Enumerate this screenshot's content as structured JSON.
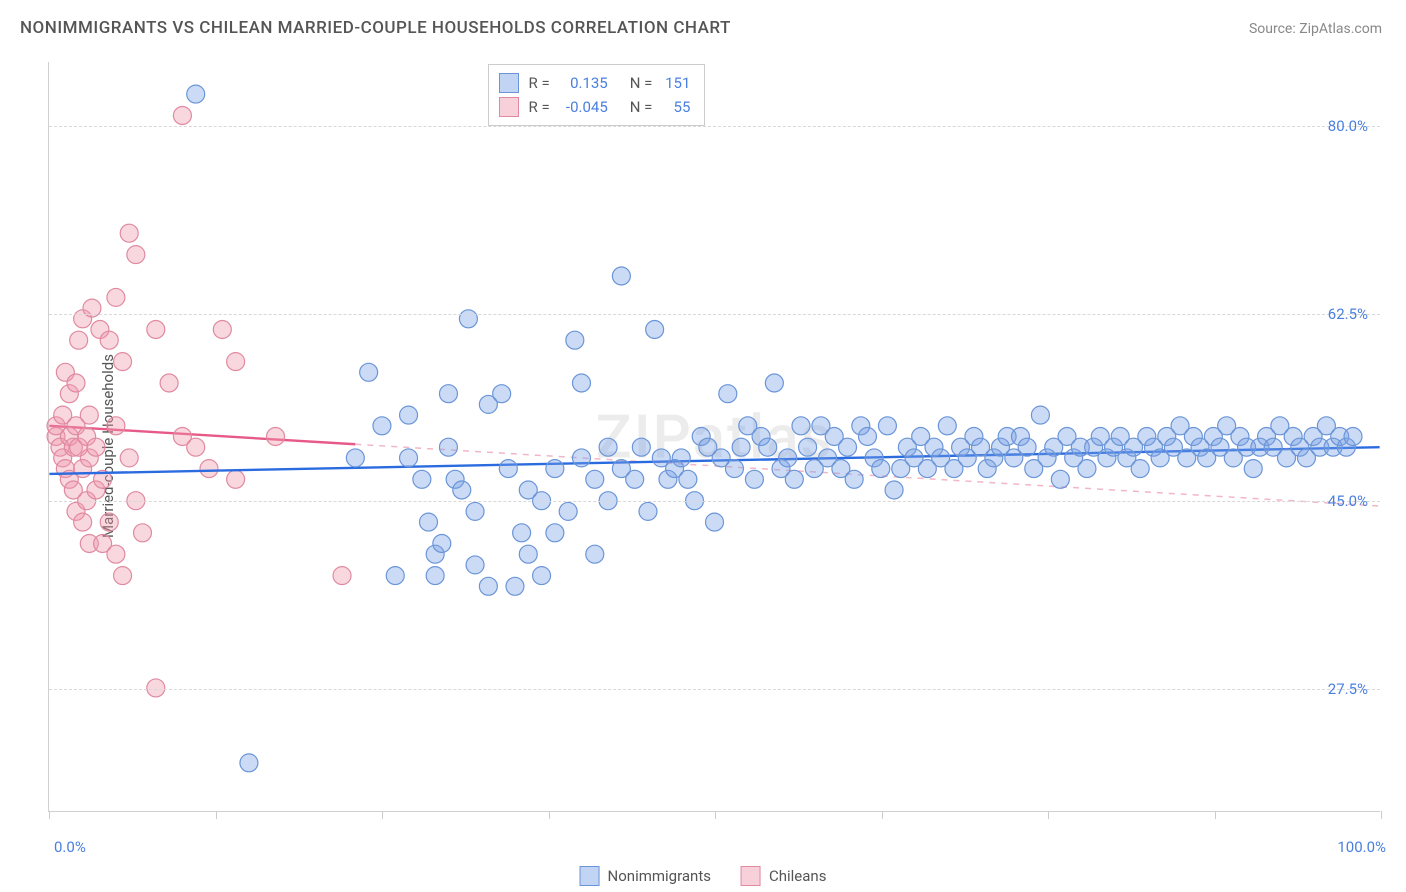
{
  "header": {
    "title": "NONIMMIGRANTS VS CHILEAN MARRIED-COUPLE HOUSEHOLDS CORRELATION CHART",
    "source": "Source: ZipAtlas.com"
  },
  "watermark": "ZIPatlas",
  "chart": {
    "type": "scatter",
    "xlim": [
      0,
      100
    ],
    "ylim": [
      16,
      86
    ],
    "x_edge_labels": {
      "min": "0.0%",
      "max": "100.0%"
    },
    "y_ticks": [
      {
        "v": 27.5,
        "label": "27.5%"
      },
      {
        "v": 45.0,
        "label": "45.0%"
      },
      {
        "v": 62.5,
        "label": "62.5%"
      },
      {
        "v": 80.0,
        "label": "80.0%"
      }
    ],
    "x_tick_positions": [
      0,
      12.5,
      25,
      37.5,
      50,
      62.5,
      75,
      87.5,
      100
    ],
    "y_axis_title": "Married-couple Households",
    "background_color": "#ffffff",
    "grid_color": "#d8d8d8",
    "axis_color": "#d0d0d0",
    "marker_radius": 9,
    "marker_stroke_width": 1.2,
    "trend_line_width": 2.4
  },
  "series": {
    "nonimmigrants": {
      "label": "Nonimmigrants",
      "fill": "rgba(120,160,230,0.38)",
      "stroke": "#6a95d8",
      "trend_color": "#2b6be0",
      "trend_dash_color": "#2b6be0",
      "trend_solid_x": [
        0,
        100
      ],
      "trend_y": [
        47.5,
        50.0
      ],
      "trend_dash_x": null,
      "correlation": {
        "r": "0.135",
        "n": "151"
      },
      "points": [
        [
          11,
          83
        ],
        [
          15,
          20.5
        ],
        [
          23,
          49
        ],
        [
          24,
          57
        ],
        [
          25,
          52
        ],
        [
          26,
          38
        ],
        [
          27,
          53
        ],
        [
          27,
          49
        ],
        [
          28,
          47
        ],
        [
          28.5,
          43
        ],
        [
          29,
          40
        ],
        [
          29,
          38
        ],
        [
          29.5,
          41
        ],
        [
          30,
          55
        ],
        [
          30,
          50
        ],
        [
          30.5,
          47
        ],
        [
          31,
          46
        ],
        [
          31.5,
          62
        ],
        [
          32,
          44
        ],
        [
          32,
          39
        ],
        [
          33,
          37
        ],
        [
          33,
          54
        ],
        [
          34,
          55
        ],
        [
          34.5,
          48
        ],
        [
          35,
          37
        ],
        [
          35.5,
          42
        ],
        [
          36,
          46
        ],
        [
          36,
          40
        ],
        [
          37,
          45
        ],
        [
          37,
          38
        ],
        [
          38,
          48
        ],
        [
          38,
          42
        ],
        [
          39,
          44
        ],
        [
          39.5,
          60
        ],
        [
          40,
          56
        ],
        [
          40,
          49
        ],
        [
          41,
          47
        ],
        [
          41,
          40
        ],
        [
          42,
          50
        ],
        [
          42,
          45
        ],
        [
          43,
          66
        ],
        [
          43,
          48
        ],
        [
          44,
          47
        ],
        [
          44.5,
          50
        ],
        [
          45,
          44
        ],
        [
          45.5,
          61
        ],
        [
          46,
          49
        ],
        [
          46.5,
          47
        ],
        [
          47,
          48
        ],
        [
          47.5,
          49
        ],
        [
          48,
          47
        ],
        [
          48.5,
          45
        ],
        [
          49,
          51
        ],
        [
          49.5,
          50
        ],
        [
          50,
          43
        ],
        [
          50.5,
          49
        ],
        [
          51,
          55
        ],
        [
          51.5,
          48
        ],
        [
          52,
          50
        ],
        [
          52.5,
          52
        ],
        [
          53,
          47
        ],
        [
          53.5,
          51
        ],
        [
          54,
          50
        ],
        [
          54.5,
          56
        ],
        [
          55,
          48
        ],
        [
          55.5,
          49
        ],
        [
          56,
          47
        ],
        [
          56.5,
          52
        ],
        [
          57,
          50
        ],
        [
          57.5,
          48
        ],
        [
          58,
          52
        ],
        [
          58.5,
          49
        ],
        [
          59,
          51
        ],
        [
          59.5,
          48
        ],
        [
          60,
          50
        ],
        [
          60.5,
          47
        ],
        [
          61,
          52
        ],
        [
          61.5,
          51
        ],
        [
          62,
          49
        ],
        [
          62.5,
          48
        ],
        [
          63,
          52
        ],
        [
          63.5,
          46
        ],
        [
          64,
          48
        ],
        [
          64.5,
          50
        ],
        [
          65,
          49
        ],
        [
          65.5,
          51
        ],
        [
          66,
          48
        ],
        [
          66.5,
          50
        ],
        [
          67,
          49
        ],
        [
          67.5,
          52
        ],
        [
          68,
          48
        ],
        [
          68.5,
          50
        ],
        [
          69,
          49
        ],
        [
          69.5,
          51
        ],
        [
          70,
          50
        ],
        [
          70.5,
          48
        ],
        [
          71,
          49
        ],
        [
          71.5,
          50
        ],
        [
          72,
          51
        ],
        [
          72.5,
          49
        ],
        [
          73,
          51
        ],
        [
          73.5,
          50
        ],
        [
          74,
          48
        ],
        [
          74.5,
          53
        ],
        [
          75,
          49
        ],
        [
          75.5,
          50
        ],
        [
          76,
          47
        ],
        [
          76.5,
          51
        ],
        [
          77,
          49
        ],
        [
          77.5,
          50
        ],
        [
          78,
          48
        ],
        [
          78.5,
          50
        ],
        [
          79,
          51
        ],
        [
          79.5,
          49
        ],
        [
          80,
          50
        ],
        [
          80.5,
          51
        ],
        [
          81,
          49
        ],
        [
          81.5,
          50
        ],
        [
          82,
          48
        ],
        [
          82.5,
          51
        ],
        [
          83,
          50
        ],
        [
          83.5,
          49
        ],
        [
          84,
          51
        ],
        [
          84.5,
          50
        ],
        [
          85,
          52
        ],
        [
          85.5,
          49
        ],
        [
          86,
          51
        ],
        [
          86.5,
          50
        ],
        [
          87,
          49
        ],
        [
          87.5,
          51
        ],
        [
          88,
          50
        ],
        [
          88.5,
          52
        ],
        [
          89,
          49
        ],
        [
          89.5,
          51
        ],
        [
          90,
          50
        ],
        [
          90.5,
          48
        ],
        [
          91,
          50
        ],
        [
          91.5,
          51
        ],
        [
          92,
          50
        ],
        [
          92.5,
          52
        ],
        [
          93,
          49
        ],
        [
          93.5,
          51
        ],
        [
          94,
          50
        ],
        [
          94.5,
          49
        ],
        [
          95,
          51
        ],
        [
          95.5,
          50
        ],
        [
          96,
          52
        ],
        [
          96.5,
          50
        ],
        [
          97,
          51
        ],
        [
          97.5,
          50
        ],
        [
          98,
          51
        ]
      ]
    },
    "chileans": {
      "label": "Chileans",
      "fill": "rgba(240,150,170,0.38)",
      "stroke": "#e08aa0",
      "trend_color": "#e75a88",
      "trend_dash_color": "#f2b6c6",
      "trend_solid_x": [
        0,
        23
      ],
      "trend_dash_x": [
        23,
        100
      ],
      "trend_y": [
        52.0,
        44.5
      ],
      "correlation": {
        "r": "-0.045",
        "n": "55"
      },
      "points": [
        [
          0.5,
          51
        ],
        [
          0.5,
          52
        ],
        [
          0.8,
          50
        ],
        [
          1,
          53
        ],
        [
          1,
          49
        ],
        [
          1.2,
          48
        ],
        [
          1.2,
          57
        ],
        [
          1.5,
          51
        ],
        [
          1.5,
          55
        ],
        [
          1.5,
          47
        ],
        [
          1.8,
          50
        ],
        [
          1.8,
          46
        ],
        [
          2,
          56
        ],
        [
          2,
          52
        ],
        [
          2,
          44
        ],
        [
          2.2,
          60
        ],
        [
          2.2,
          50
        ],
        [
          2.5,
          48
        ],
        [
          2.5,
          62
        ],
        [
          2.5,
          43
        ],
        [
          2.8,
          51
        ],
        [
          2.8,
          45
        ],
        [
          3,
          53
        ],
        [
          3,
          49
        ],
        [
          3,
          41
        ],
        [
          3.2,
          63
        ],
        [
          3.5,
          50
        ],
        [
          3.5,
          46
        ],
        [
          3.8,
          61
        ],
        [
          4,
          41
        ],
        [
          4,
          47
        ],
        [
          4.5,
          60
        ],
        [
          4.5,
          43
        ],
        [
          5,
          64
        ],
        [
          5,
          40
        ],
        [
          5,
          52
        ],
        [
          5.5,
          58
        ],
        [
          5.5,
          38
        ],
        [
          6,
          49
        ],
        [
          6,
          70
        ],
        [
          6.5,
          45
        ],
        [
          6.5,
          68
        ],
        [
          7,
          42
        ],
        [
          8,
          61
        ],
        [
          8,
          27.5
        ],
        [
          9,
          56
        ],
        [
          10,
          51
        ],
        [
          10,
          81
        ],
        [
          11,
          50
        ],
        [
          12,
          48
        ],
        [
          13,
          61
        ],
        [
          14,
          47
        ],
        [
          14,
          58
        ],
        [
          17,
          51
        ],
        [
          22,
          38
        ]
      ]
    }
  },
  "bottom_legend": [
    {
      "swatch": "blue",
      "label": "Nonimmigrants"
    },
    {
      "swatch": "pink",
      "label": "Chileans"
    }
  ],
  "corr_box": {
    "rows": [
      {
        "swatch": "blue",
        "r_label": "R =",
        "r": "0.135",
        "n_label": "N =",
        "n": "151"
      },
      {
        "swatch": "pink",
        "r_label": "R =",
        "r": "-0.045",
        "n_label": "N =",
        "n": "55"
      }
    ]
  }
}
